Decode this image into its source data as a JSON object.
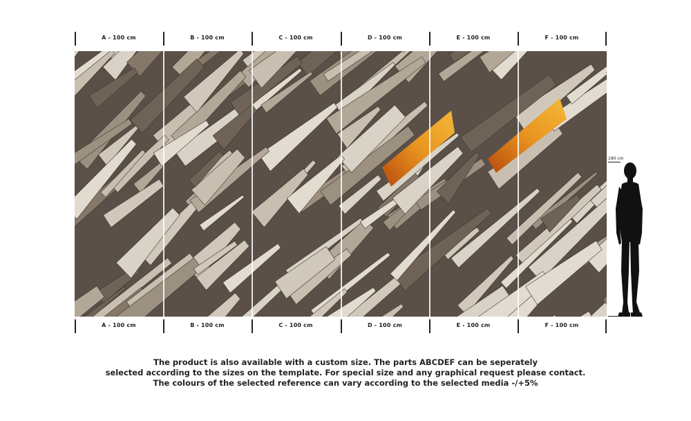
{
  "panels": [
    {
      "label": "A - 100 cm"
    },
    {
      "label": "B - 100 cm"
    },
    {
      "label": "C - 100 cm"
    },
    {
      "label": "D - 100 cm"
    },
    {
      "label": "E - 100 cm"
    },
    {
      "label": "F - 100 cm"
    }
  ],
  "person": {
    "height_label": "180 cm"
  },
  "caption": {
    "line1": "The product is also available with a custom size. The parts ABCDEF can be seperately",
    "line2": "selected according to the sizes on the template. For special size and any graphical request please contact.",
    "line3": "The colours of the selected reference can vary according to the selected media -/+5%"
  },
  "colors": {
    "stone_light": "#d8d0c4",
    "stone_mid": "#a89c8c",
    "stone_dark": "#4e453c",
    "accent_gold": "#e8a020",
    "accent_orange": "#c85a10",
    "silhouette": "#111111"
  }
}
